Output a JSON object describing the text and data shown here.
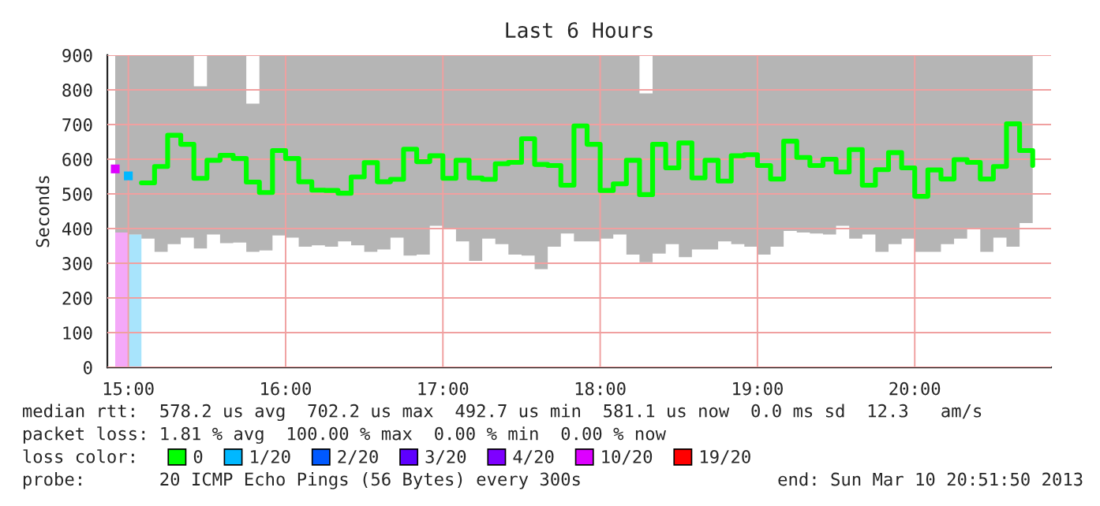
{
  "chart_data": {
    "type": "step",
    "title": "Last 6 Hours",
    "ylabel": "Seconds",
    "legend_title": "loss color:",
    "legend": "bottom",
    "grid": true,
    "x": [
      "2013-03-10T14:55",
      "2013-03-10T15:00",
      "2013-03-10T15:05",
      "2013-03-10T15:10",
      "2013-03-10T15:15",
      "2013-03-10T15:20",
      "2013-03-10T15:25",
      "2013-03-10T15:30",
      "2013-03-10T15:35",
      "2013-03-10T15:40",
      "2013-03-10T15:45",
      "2013-03-10T15:50",
      "2013-03-10T15:55",
      "2013-03-10T16:00",
      "2013-03-10T16:05",
      "2013-03-10T16:10",
      "2013-03-10T16:15",
      "2013-03-10T16:20",
      "2013-03-10T16:25",
      "2013-03-10T16:30",
      "2013-03-10T16:35",
      "2013-03-10T16:40",
      "2013-03-10T16:45",
      "2013-03-10T16:50",
      "2013-03-10T16:55",
      "2013-03-10T17:00",
      "2013-03-10T17:05",
      "2013-03-10T17:10",
      "2013-03-10T17:15",
      "2013-03-10T17:20",
      "2013-03-10T17:25",
      "2013-03-10T17:30",
      "2013-03-10T17:35",
      "2013-03-10T17:40",
      "2013-03-10T17:45",
      "2013-03-10T17:50",
      "2013-03-10T17:55",
      "2013-03-10T18:00",
      "2013-03-10T18:05",
      "2013-03-10T18:10",
      "2013-03-10T18:15",
      "2013-03-10T18:20",
      "2013-03-10T18:25",
      "2013-03-10T18:30",
      "2013-03-10T18:35",
      "2013-03-10T18:40",
      "2013-03-10T18:45",
      "2013-03-10T18:50",
      "2013-03-10T18:55",
      "2013-03-10T19:00",
      "2013-03-10T19:05",
      "2013-03-10T19:10",
      "2013-03-10T19:15",
      "2013-03-10T19:20",
      "2013-03-10T19:25",
      "2013-03-10T19:30",
      "2013-03-10T19:35",
      "2013-03-10T19:40",
      "2013-03-10T19:45",
      "2013-03-10T19:50",
      "2013-03-10T19:55",
      "2013-03-10T20:00",
      "2013-03-10T20:05",
      "2013-03-10T20:10",
      "2013-03-10T20:15",
      "2013-03-10T20:20",
      "2013-03-10T20:25",
      "2013-03-10T20:30",
      "2013-03-10T20:35",
      "2013-03-10T20:40",
      "2013-03-10T20:45"
    ],
    "xlim": [
      "2013-03-10T14:52",
      "2013-03-10T20:52"
    ],
    "xticks": [
      {
        "value": "2013-03-10T15:00",
        "label": "15:00"
      },
      {
        "value": "2013-03-10T16:00",
        "label": "16:00"
      },
      {
        "value": "2013-03-10T17:00",
        "label": "17:00"
      },
      {
        "value": "2013-03-10T18:00",
        "label": "18:00"
      },
      {
        "value": "2013-03-10T19:00",
        "label": "19:00"
      },
      {
        "value": "2013-03-10T20:00",
        "label": "20:00"
      }
    ],
    "ylim": [
      0,
      900
    ],
    "yticks": [
      0,
      100,
      200,
      300,
      400,
      500,
      600,
      700,
      800,
      900
    ],
    "series": [
      {
        "type": "bar",
        "color": "#f4a8f8",
        "x": [
          "2013-03-10T14:55"
        ],
        "values": [
          389
        ]
      },
      {
        "type": "bar",
        "color": "#a8e4fc",
        "x": [
          "2013-03-10T15:00"
        ],
        "values": [
          383
        ]
      },
      {
        "name": "0",
        "color": "#00ff00",
        "values": [
          null,
          null,
          532,
          579,
          669,
          643,
          545,
          597,
          611,
          602,
          534,
          504,
          625,
          602,
          535,
          511,
          510,
          502,
          549,
          590,
          535,
          542,
          629,
          593,
          610,
          545,
          597,
          546,
          542,
          587,
          591,
          659,
          585,
          582,
          525,
          696,
          643,
          510,
          529,
          597,
          498,
          643,
          575,
          647,
          546,
          597,
          537,
          610,
          613,
          582,
          543,
          652,
          605,
          582,
          600,
          563,
          628,
          525,
          570,
          619,
          575,
          493,
          569,
          543,
          599,
          591,
          543,
          579,
          702,
          625,
          582
        ],
        "lower": [
          389,
          383,
          371,
          333,
          355,
          374,
          343,
          383,
          358,
          360,
          333,
          337,
          380,
          374,
          348,
          352,
          348,
          363,
          352,
          333,
          340,
          374,
          322,
          325,
          408,
          401,
          363,
          307,
          371,
          355,
          325,
          322,
          283,
          348,
          386,
          363,
          363,
          371,
          383,
          325,
          303,
          328,
          355,
          318,
          340,
          340,
          363,
          355,
          348,
          325,
          348,
          393,
          389,
          386,
          383,
          408,
          371,
          383,
          333,
          355,
          371,
          333,
          333,
          355,
          371,
          401,
          333,
          374,
          348,
          416,
          423
        ],
        "upper": [
          900,
          900,
          900,
          900,
          900,
          900,
          810,
          900,
          900,
          900,
          760,
          900,
          900,
          900,
          900,
          900,
          900,
          900,
          900,
          900,
          900,
          900,
          900,
          900,
          900,
          900,
          900,
          900,
          900,
          900,
          900,
          900,
          900,
          900,
          900,
          900,
          900,
          900,
          900,
          900,
          790,
          900,
          900,
          900,
          900,
          900,
          900,
          900,
          900,
          900,
          900,
          900,
          900,
          900,
          900,
          900,
          900,
          900,
          900,
          900,
          900,
          900,
          900,
          900,
          900,
          900,
          900,
          900,
          900,
          900,
          900
        ]
      },
      {
        "name": "1/20",
        "color": "#00b8ff",
        "marker": "square",
        "x": [
          "2013-03-10T15:00"
        ],
        "values": [
          552
        ]
      },
      {
        "name": "2/20",
        "color": "#0059ff",
        "values": [
          null,
          null,
          null,
          null,
          null,
          null,
          null,
          null,
          null,
          null,
          null,
          null,
          null,
          null,
          null,
          null,
          null,
          null,
          null,
          null,
          null,
          null,
          null,
          null,
          null,
          null,
          null,
          null,
          null,
          null,
          null,
          null,
          null,
          null,
          null,
          null,
          null,
          null,
          null,
          null,
          null,
          null,
          null,
          null,
          null,
          null,
          null,
          null,
          null,
          null,
          null,
          null,
          null,
          null,
          null,
          null,
          null,
          null,
          null,
          null,
          null,
          null,
          null,
          null,
          null,
          null,
          null,
          null,
          null,
          null,
          null
        ]
      },
      {
        "name": "3/20",
        "color": "#5e00ff",
        "values": [
          null,
          null,
          null,
          null,
          null,
          null,
          null,
          null,
          null,
          null,
          null,
          null,
          null,
          null,
          null,
          null,
          null,
          null,
          null,
          null,
          null,
          null,
          null,
          null,
          null,
          null,
          null,
          null,
          null,
          null,
          null,
          null,
          null,
          null,
          null,
          null,
          null,
          null,
          null,
          null,
          null,
          null,
          null,
          null,
          null,
          null,
          null,
          null,
          null,
          null,
          null,
          null,
          null,
          null,
          null,
          null,
          null,
          null,
          null,
          null,
          null,
          null,
          null,
          null,
          null,
          null,
          null,
          null,
          null,
          null,
          null
        ]
      },
      {
        "name": "4/20",
        "color": "#7e00ff",
        "values": [
          null,
          null,
          null,
          null,
          null,
          null,
          null,
          null,
          null,
          null,
          null,
          null,
          null,
          null,
          null,
          null,
          null,
          null,
          null,
          null,
          null,
          null,
          null,
          null,
          null,
          null,
          null,
          null,
          null,
          null,
          null,
          null,
          null,
          null,
          null,
          null,
          null,
          null,
          null,
          null,
          null,
          null,
          null,
          null,
          null,
          null,
          null,
          null,
          null,
          null,
          null,
          null,
          null,
          null,
          null,
          null,
          null,
          null,
          null,
          null,
          null,
          null,
          null,
          null,
          null,
          null,
          null,
          null,
          null,
          null,
          null
        ]
      },
      {
        "name": "10/20",
        "color": "#dd00ff",
        "marker": "square",
        "x": [
          "2013-03-10T14:55"
        ],
        "values": [
          572
        ]
      },
      {
        "name": "19/20",
        "color": "#ff0000",
        "values": [
          null,
          null,
          null,
          null,
          null,
          null,
          null,
          null,
          null,
          null,
          null,
          null,
          null,
          null,
          null,
          null,
          null,
          null,
          null,
          null,
          null,
          null,
          null,
          null,
          null,
          null,
          null,
          null,
          null,
          null,
          null,
          null,
          null,
          null,
          null,
          null,
          null,
          null,
          null,
          null,
          null,
          null,
          null,
          null,
          null,
          null,
          null,
          null,
          null,
          null,
          null,
          null,
          null,
          null,
          null,
          null,
          null,
          null,
          null,
          null,
          null,
          null,
          null,
          null,
          null,
          null,
          null,
          null,
          null,
          null,
          null
        ]
      }
    ],
    "annotations": [
      "median rtt:  578.2 us avg  702.2 us max  492.7 us min  581.1 us now  0.0 ms sd  12.3   am/s",
      "packet loss: 1.81 % avg  100.00 % max  0.00 % min  0.00 % now",
      "probe:       20 ICMP Echo Pings (56 Bytes) every 300s",
      "end: Sun Mar 10 20:51:50 2013"
    ]
  }
}
